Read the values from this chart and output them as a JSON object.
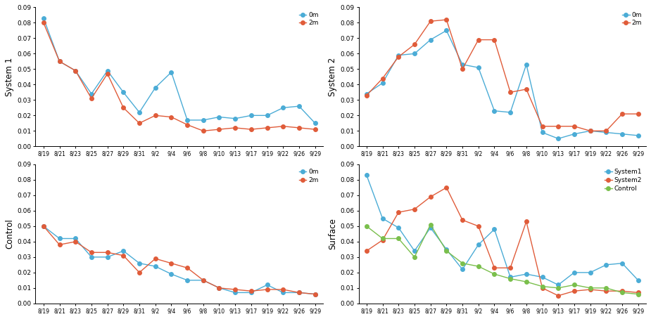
{
  "x_labels": [
    "8/19",
    "8/21",
    "8/23",
    "8/25",
    "8/27",
    "8/29",
    "8/31",
    "9/2",
    "9/4",
    "9/6",
    "9/8",
    "9/10",
    "9/13",
    "9/17",
    "9/19",
    "9/22",
    "9/26",
    "9/29"
  ],
  "system1_0m": [
    0.083,
    0.055,
    0.049,
    0.034,
    0.049,
    0.035,
    0.022,
    0.038,
    0.048,
    0.017,
    0.017,
    0.019,
    0.018,
    0.02,
    0.02,
    0.025,
    0.026,
    0.015
  ],
  "system1_2m": [
    0.08,
    0.055,
    0.049,
    0.031,
    0.047,
    0.025,
    0.015,
    0.02,
    0.019,
    0.014,
    0.01,
    0.011,
    0.012,
    0.011,
    0.012,
    0.013,
    0.012,
    0.011
  ],
  "system2_0m": [
    0.034,
    0.041,
    0.059,
    0.06,
    0.069,
    0.075,
    0.053,
    0.051,
    0.023,
    0.022,
    0.053,
    0.009,
    0.005,
    0.008,
    0.01,
    0.009,
    0.008,
    0.007
  ],
  "system2_2m": [
    0.033,
    0.044,
    0.058,
    0.066,
    0.081,
    0.082,
    0.05,
    0.069,
    0.069,
    0.035,
    0.037,
    0.013,
    0.013,
    0.013,
    0.01,
    0.01,
    0.021,
    0.021
  ],
  "control_0m": [
    0.05,
    0.042,
    0.042,
    0.03,
    0.03,
    0.034,
    0.026,
    0.024,
    0.019,
    0.015,
    0.015,
    0.01,
    0.007,
    0.007,
    0.012,
    0.007,
    0.007,
    0.006
  ],
  "control_2m": [
    0.05,
    0.038,
    0.04,
    0.033,
    0.033,
    0.031,
    0.02,
    0.029,
    0.026,
    0.023,
    0.015,
    0.01,
    0.009,
    0.008,
    0.009,
    0.009,
    0.007,
    0.006
  ],
  "surface_sys1": [
    0.083,
    0.055,
    0.049,
    0.034,
    0.049,
    0.035,
    0.022,
    0.038,
    0.048,
    0.017,
    0.019,
    0.017,
    0.012,
    0.02,
    0.02,
    0.025,
    0.026,
    0.015
  ],
  "surface_sys2": [
    0.034,
    0.041,
    0.059,
    0.061,
    0.069,
    0.075,
    0.054,
    0.05,
    0.023,
    0.023,
    0.053,
    0.01,
    0.005,
    0.008,
    0.009,
    0.008,
    0.008,
    0.007
  ],
  "surface_ctrl": [
    0.05,
    0.042,
    0.042,
    0.03,
    0.051,
    0.034,
    0.026,
    0.024,
    0.019,
    0.016,
    0.014,
    0.011,
    0.01,
    0.012,
    0.01,
    0.01,
    0.007,
    0.006
  ],
  "color_blue": "#4BACD6",
  "color_red": "#E05C3A",
  "color_green": "#7ABF4C",
  "ylim": [
    0.0,
    0.09
  ],
  "yticks": [
    0.0,
    0.01,
    0.02,
    0.03,
    0.04,
    0.05,
    0.06,
    0.07,
    0.08,
    0.09
  ],
  "marker_size": 4,
  "linewidth": 1.0,
  "ylabel_system1": "System 1",
  "ylabel_system2": "System 2",
  "ylabel_control": "Control",
  "ylabel_surface": "Surface",
  "legend_0m": "0m",
  "legend_2m": "2m",
  "legend_sys1": "System1",
  "legend_sys2": "System2",
  "legend_ctrl": "Control"
}
